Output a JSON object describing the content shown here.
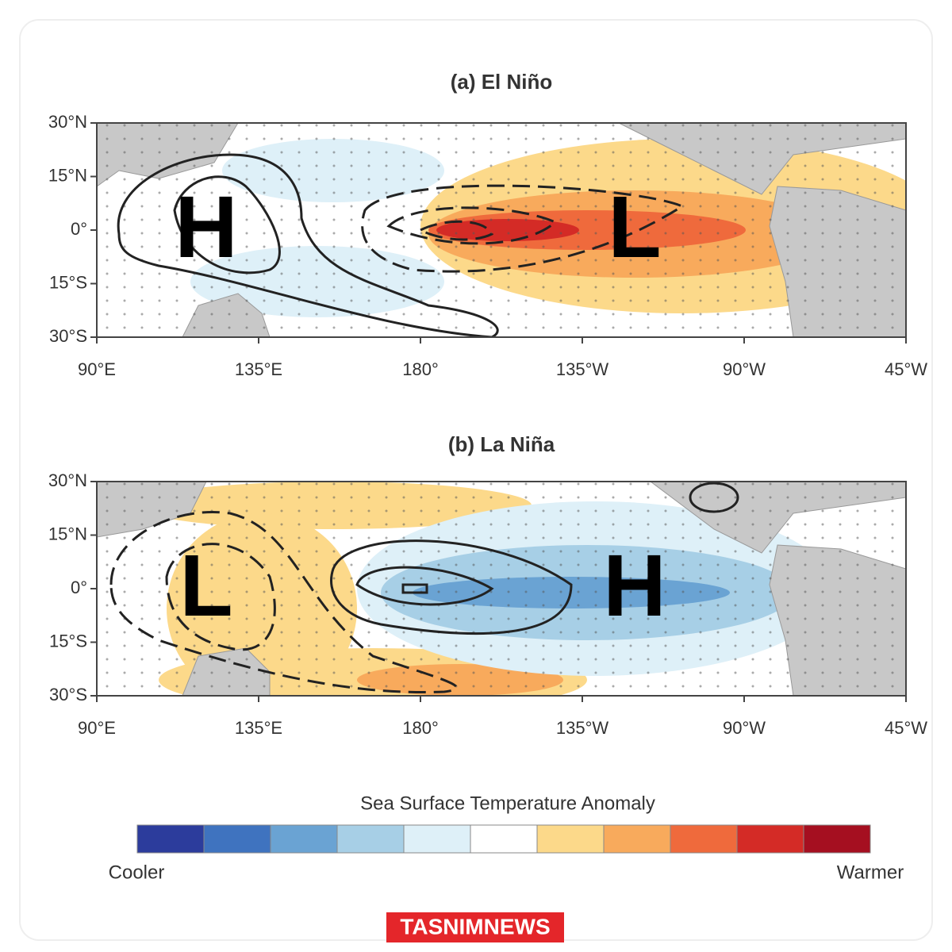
{
  "panels": [
    {
      "title": "(a) El Niño",
      "lat_labels": [
        "30°N",
        "15°N",
        "0°",
        "15°S",
        "30°S"
      ],
      "lon_labels": [
        "90°E",
        "135°E",
        "180°",
        "135°W",
        "90°W",
        "45°W"
      ],
      "centers": [
        "H",
        "L"
      ]
    },
    {
      "title": "(b) La Niña",
      "lat_labels": [
        "30°N",
        "15°N",
        "0°",
        "15°S",
        "30°S"
      ],
      "lon_labels": [
        "90°E",
        "135°E",
        "180°",
        "135°W",
        "90°W",
        "45°W"
      ],
      "centers": [
        "L",
        "H"
      ]
    }
  ],
  "colorbar": {
    "title": "Sea Surface Temperature Anomaly",
    "colors": [
      "#2c3c9c",
      "#3f73bf",
      "#6aa3d3",
      "#a7cfe6",
      "#def0f8",
      "#ffffff",
      "#fcd98a",
      "#f8aa5c",
      "#ef6a3c",
      "#d42b26",
      "#a50f20"
    ],
    "low_label": "Cooler",
    "high_label": "Warmer"
  },
  "watermark": "TASNIMNEWS"
}
